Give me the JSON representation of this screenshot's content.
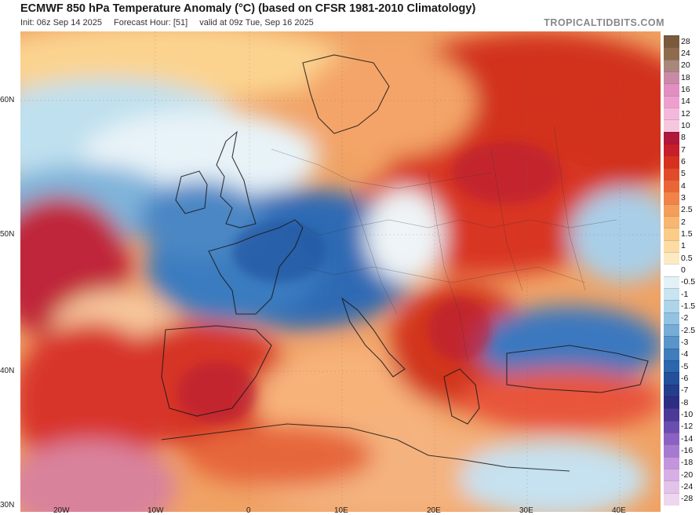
{
  "header": {
    "title": "ECMWF 850 hPa Temperature Anomaly (°C) (based on CFSR 1981-2010 Climatology)",
    "init": "Init: 06z Sep 14 2025",
    "forecast_hour": "Forecast Hour: [51]",
    "valid": "valid at 09z Tue, Sep 16 2025",
    "brand": "TROPICALTIDBITS.COM"
  },
  "map": {
    "region": "Europe",
    "latitude_labels": [
      "60N",
      "50N",
      "40N",
      "30N"
    ],
    "longitude_labels": [
      "20W",
      "10W",
      "0",
      "10E",
      "20E",
      "30E",
      "40E"
    ],
    "warm_color": "#d7301f",
    "cool_color": "#2a6bb8"
  },
  "colorbar": {
    "unit": "°C",
    "levels": [
      {
        "label": "28",
        "color": "#7a5a3c"
      },
      {
        "label": "24",
        "color": "#8d6b4c"
      },
      {
        "label": "20",
        "color": "#a7887a"
      },
      {
        "label": "18",
        "color": "#c98aa6"
      },
      {
        "label": "16",
        "color": "#e08fc0"
      },
      {
        "label": "14",
        "color": "#ee9fd0"
      },
      {
        "label": "12",
        "color": "#f5b8dc"
      },
      {
        "label": "10",
        "color": "#f7c7e0"
      },
      {
        "label": "8",
        "color": "#b0173a"
      },
      {
        "label": "7",
        "color": "#c61e2c"
      },
      {
        "label": "6",
        "color": "#d7301f"
      },
      {
        "label": "5",
        "color": "#e24a2a"
      },
      {
        "label": "4",
        "color": "#ec6536"
      },
      {
        "label": "3",
        "color": "#f28247"
      },
      {
        "label": "2.5",
        "color": "#f59d5b"
      },
      {
        "label": "2",
        "color": "#f8b670"
      },
      {
        "label": "1.5",
        "color": "#fbcb88"
      },
      {
        "label": "1",
        "color": "#fddca4"
      },
      {
        "label": "0.5",
        "color": "#feeac2"
      },
      {
        "label": "0",
        "color": "#ffffff"
      },
      {
        "label": "-0.5",
        "color": "#e3f1f7"
      },
      {
        "label": "-1",
        "color": "#c8e4f0"
      },
      {
        "label": "-1.5",
        "color": "#aed4ea"
      },
      {
        "label": "-2",
        "color": "#93c2e2"
      },
      {
        "label": "-2.5",
        "color": "#76acd6"
      },
      {
        "label": "-3",
        "color": "#5995c9"
      },
      {
        "label": "-4",
        "color": "#3f7dbb"
      },
      {
        "label": "-5",
        "color": "#2c66ad"
      },
      {
        "label": "-6",
        "color": "#22509b"
      },
      {
        "label": "-7",
        "color": "#243d8c"
      },
      {
        "label": "-8",
        "color": "#2d2e82"
      },
      {
        "label": "-10",
        "color": "#4c3a98"
      },
      {
        "label": "-12",
        "color": "#6a4db0"
      },
      {
        "label": "-14",
        "color": "#8b62c4"
      },
      {
        "label": "-16",
        "color": "#a77ad2"
      },
      {
        "label": "-18",
        "color": "#c495de"
      },
      {
        "label": "-20",
        "color": "#d7afe6"
      },
      {
        "label": "-24",
        "color": "#e3c3ea"
      },
      {
        "label": "-28",
        "color": "#eed6ef"
      }
    ]
  }
}
